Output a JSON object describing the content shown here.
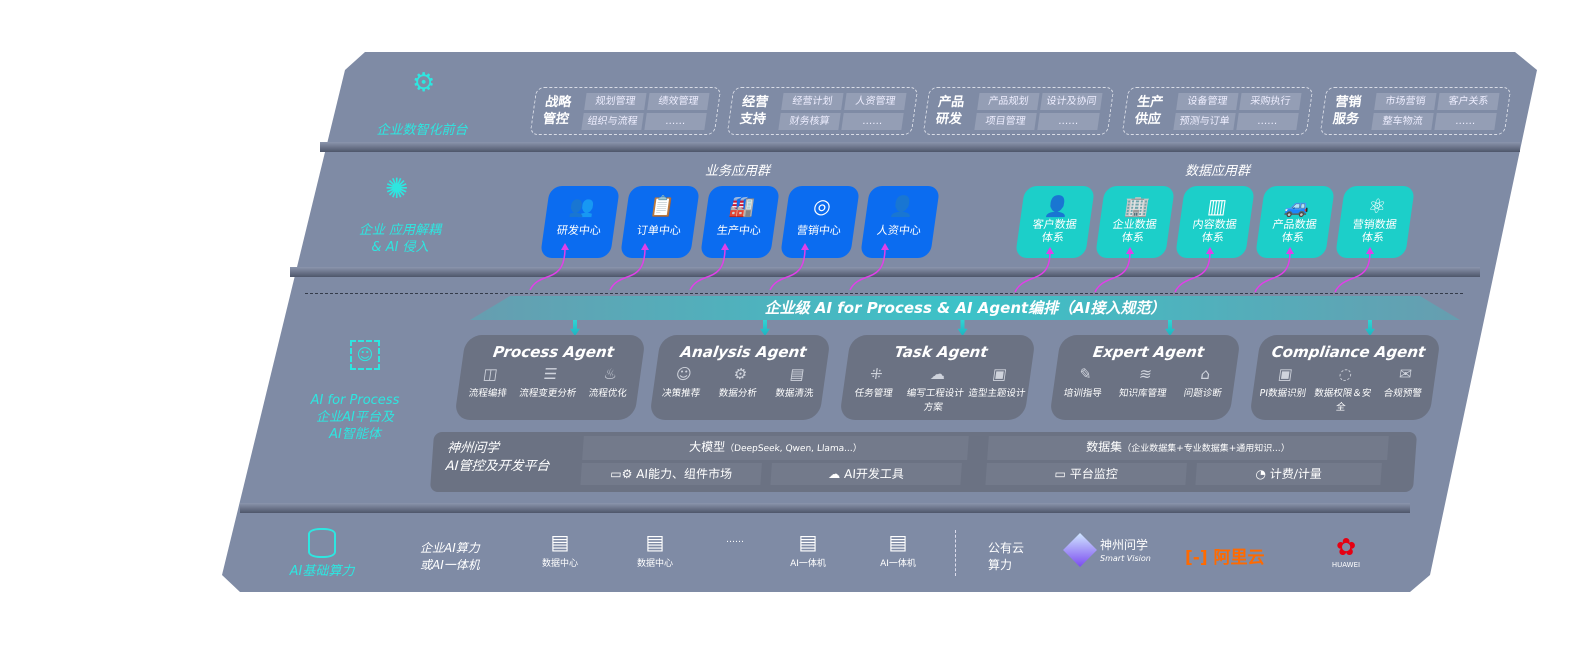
{
  "layers": {
    "front": {
      "label": "企业数智化前台",
      "icon": "brain-icon"
    },
    "apps": {
      "label1": "企业 应用解耦",
      "label2": "& AI 侵入",
      "icon": "molecule-icon"
    },
    "ai": {
      "label1": "AI for Process",
      "label2": "企业AI平台及",
      "label3": "AI智能体",
      "icon": "face-scan-icon"
    },
    "infra": {
      "label": "AI基础算力",
      "icon": "database-icon"
    }
  },
  "groups": [
    {
      "title": "战略管控",
      "chips": [
        "规划管理",
        "绩效管理",
        "组织与流程",
        "……"
      ]
    },
    {
      "title": "经营支持",
      "chips": [
        "经营计划",
        "人资管理",
        "财务核算",
        "……"
      ]
    },
    {
      "title": "产品研发",
      "chips": [
        "产品规划",
        "设计及协同",
        "项目管理",
        "……"
      ]
    },
    {
      "title": "生产供应",
      "chips": [
        "设备管理",
        "采购执行",
        "预测与订单",
        "……"
      ]
    },
    {
      "title": "营销服务",
      "chips": [
        "市场营销",
        "客户关系",
        "整车物流",
        "……"
      ]
    }
  ],
  "business_apps": {
    "title": "业务应用群",
    "items": [
      {
        "label": "研发中心",
        "icon": "team-icon"
      },
      {
        "label": "订单中心",
        "icon": "clipboard-icon"
      },
      {
        "label": "生产中心",
        "icon": "factory-icon"
      },
      {
        "label": "营销中心",
        "icon": "target-icon"
      },
      {
        "label": "人资中心",
        "icon": "person-icon"
      }
    ]
  },
  "data_apps": {
    "title": "数据应用群",
    "items": [
      {
        "label": "客户数据体系",
        "icon": "user-icon"
      },
      {
        "label": "企业数据体系",
        "icon": "building-icon"
      },
      {
        "label": "内容数据体系",
        "icon": "books-icon"
      },
      {
        "label": "产品数据体系",
        "icon": "car-icon"
      },
      {
        "label": "营销数据体系",
        "icon": "atom-icon"
      }
    ]
  },
  "banner": "企业级 AI for Process & AI Agent编排（AI接入规范）",
  "agents": [
    {
      "name": "Process Agent",
      "items": [
        "流程编排",
        "流程变更分析",
        "流程优化"
      ]
    },
    {
      "name": "Analysis Agent",
      "items": [
        "决策推荐",
        "数据分析",
        "数据清洗"
      ]
    },
    {
      "name": "Task Agent",
      "items": [
        "任务管理",
        "编写工程设计方案",
        "造型主题设计"
      ]
    },
    {
      "name": "Expert Agent",
      "items": [
        "培训指导",
        "知识库管理",
        "问题诊断"
      ]
    },
    {
      "name": "Compliance Agent",
      "items": [
        "PI数据识别",
        "数据权限＆安全",
        "合规预警"
      ]
    }
  ],
  "platform": {
    "title1": "神州问学",
    "title2": "AI管控及开发平台",
    "model": "大模型",
    "model_note": "（DeepSeek, Qwen, Llama...）",
    "dataset": "数据集",
    "dataset_note": "（企业数据集+专业数据集+通用知识...）",
    "market": "AI能力、组件市场",
    "devtools": "AI开发工具",
    "monitor": "平台监控",
    "billing": "计费/计量"
  },
  "infra": {
    "enterprise1": "企业AI算力",
    "enterprise2": "或AI一体机",
    "nodes": [
      "数据中心",
      "数据中心",
      "……",
      "AI一体机",
      "AI一体机"
    ],
    "public1": "公有云",
    "public2": "算力",
    "vendors": {
      "shenzhou": "神州问学",
      "shenzhou_sub": "Smart Vision",
      "aliyun": "阿里云",
      "huawei": "HUAWEI"
    }
  },
  "colors": {
    "blue": "#0b6cf0",
    "teal": "#1ccfc9",
    "accent": "#2ee6e0",
    "arrow": "#e040e8",
    "aliyun": "#ff6a00",
    "huawei": "#e60012"
  }
}
